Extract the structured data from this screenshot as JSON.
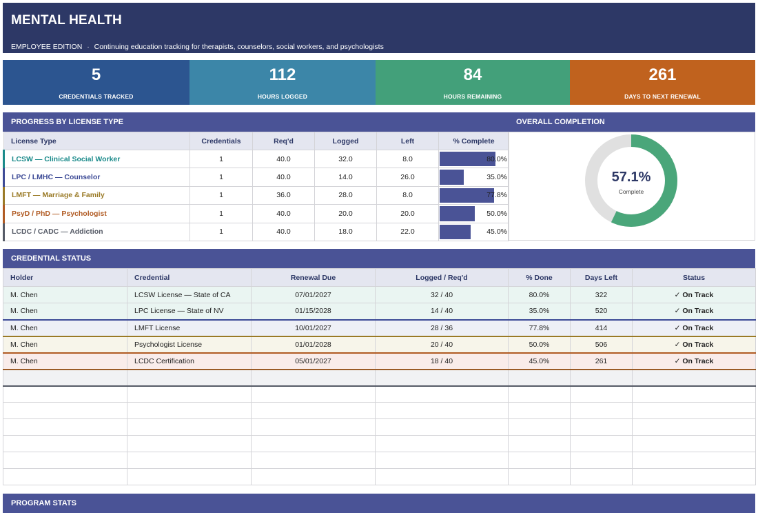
{
  "header": {
    "title": "MENTAL HEALTH",
    "edition": "EMPLOYEE EDITION",
    "separator": "·",
    "subtitle": "Continuing education tracking for therapists, counselors, social workers, and psychologists"
  },
  "kpis": [
    {
      "value": "5",
      "label": "CREDENTIALS TRACKED",
      "color": "#2c5590"
    },
    {
      "value": "112",
      "label": "HOURS LOGGED",
      "color": "#3c86a8"
    },
    {
      "value": "84",
      "label": "HOURS REMAINING",
      "color": "#43a07a"
    },
    {
      "value": "261",
      "label": "DAYS TO NEXT RENEWAL",
      "color": "#c0621e"
    }
  ],
  "progress": {
    "title": "PROGRESS BY LICENSE TYPE",
    "columns": [
      "License Type",
      "Credentials",
      "Req'd",
      "Logged",
      "Left",
      "% Complete"
    ],
    "rows": [
      {
        "name": "LCSW — Clinical Social Worker",
        "color": "#1a8a8a",
        "credentials": "1",
        "reqd": "40.0",
        "logged": "32.0",
        "left": "8.0",
        "pct_label": "80.0%",
        "pct": 80.0
      },
      {
        "name": "LPC / LMHC — Counselor",
        "color": "#3c4a96",
        "credentials": "1",
        "reqd": "40.0",
        "logged": "14.0",
        "left": "26.0",
        "pct_label": "35.0%",
        "pct": 35.0
      },
      {
        "name": "LMFT — Marriage & Family",
        "color": "#9a7a26",
        "credentials": "1",
        "reqd": "36.0",
        "logged": "28.0",
        "left": "8.0",
        "pct_label": "77.8%",
        "pct": 77.8
      },
      {
        "name": "PsyD / PhD — Psychologist",
        "color": "#b05a22",
        "credentials": "1",
        "reqd": "40.0",
        "logged": "20.0",
        "left": "20.0",
        "pct_label": "50.0%",
        "pct": 50.0
      },
      {
        "name": "LCDC / CADC — Addiction",
        "color": "#555a66",
        "credentials": "1",
        "reqd": "40.0",
        "logged": "18.0",
        "left": "22.0",
        "pct_label": "45.0%",
        "pct": 45.0
      }
    ]
  },
  "overall": {
    "title": "OVERALL COMPLETION",
    "value_label": "57.1%",
    "value": 57.1,
    "caption": "Complete",
    "fill_color": "#4aa67a",
    "track_color": "#e0e0e0"
  },
  "credential_status": {
    "title": "CREDENTIAL STATUS",
    "columns": [
      "Holder",
      "Credential",
      "Renewal Due",
      "Logged / Req'd",
      "% Done",
      "Days Left",
      "Status"
    ],
    "rows": [
      {
        "holder": "M. Chen",
        "credential": "LCSW License — State of CA",
        "renewal": "07/01/2027",
        "logged_reqd": "32 / 40",
        "done": "80.0%",
        "days": "322",
        "status": "✓ On Track",
        "bg": "#eaf5f2",
        "line": "#1a8a8a"
      },
      {
        "holder": "M. Chen",
        "credential": "LPC License — State of NV",
        "renewal": "01/15/2028",
        "logged_reqd": "14 / 40",
        "done": "35.0%",
        "days": "520",
        "status": "✓ On Track",
        "bg": "#eaf5f2",
        "line": "#1a8a8a"
      },
      {
        "holder": "M. Chen",
        "credential": "LMFT License",
        "renewal": "10/01/2027",
        "logged_reqd": "28 / 36",
        "done": "77.8%",
        "days": "414",
        "status": "✓ On Track",
        "bg": "#eef0f6",
        "line": "#3c4a96"
      },
      {
        "holder": "M. Chen",
        "credential": "Psychologist License",
        "renewal": "01/01/2028",
        "logged_reqd": "20 / 40",
        "done": "50.0%",
        "days": "506",
        "status": "✓ On Track",
        "bg": "#f7f5ea",
        "line": "#9a7a26"
      },
      {
        "holder": "M. Chen",
        "credential": "LCDC Certification",
        "renewal": "05/01/2027",
        "logged_reqd": "18 / 40",
        "done": "45.0%",
        "days": "261",
        "status": "✓ On Track",
        "bg": "#f9ecea",
        "line": "#b05a22"
      }
    ],
    "empty_rows": 7
  },
  "program_stats": {
    "title": "PROGRAM STATS"
  }
}
